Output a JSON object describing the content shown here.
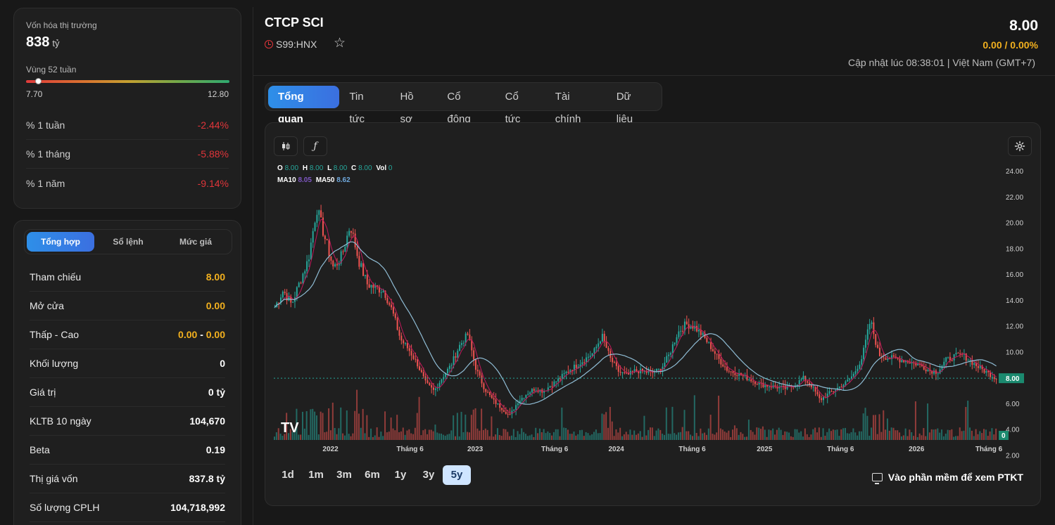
{
  "market": {
    "cap_label": "Vốn hóa thị trường",
    "cap_value": "838",
    "cap_unit": "tỷ",
    "w52_label": "Vùng 52 tuần",
    "w52_low": "7.70",
    "w52_high": "12.80",
    "w52_current_fraction": 0.06,
    "perf": [
      {
        "label": "% 1 tuần",
        "value": "-2.44%"
      },
      {
        "label": "% 1 tháng",
        "value": "-5.88%"
      },
      {
        "label": "% 1 năm",
        "value": "-9.14%"
      }
    ]
  },
  "summary": {
    "tabs": [
      "Tổng hợp",
      "Sổ lệnh",
      "Mức giá"
    ],
    "rows": [
      {
        "label": "Tham chiếu",
        "value": "8.00"
      },
      {
        "label": "Mở cửa",
        "value": "0.00"
      },
      {
        "label": "Thấp - Cao",
        "low": "0.00",
        "sep": "-",
        "high": "0.00"
      },
      {
        "label": "Khối lượng",
        "value": "0"
      },
      {
        "label": "Giá trị",
        "value": "0 tỷ"
      },
      {
        "label": "KLTB 10 ngày",
        "value": "104,670"
      },
      {
        "label": "Beta",
        "value": "0.19"
      },
      {
        "label": "Thị giá vốn",
        "value": "837.8 tỷ"
      },
      {
        "label": "Số lượng CPLH",
        "value": "104,718,992"
      }
    ]
  },
  "header": {
    "company": "CTCP SCI",
    "ticker": "S99:HNX",
    "price": "8.00",
    "change": "0.00 / 0.00%",
    "updated": "Cập nhật lúc 08:38:01 | Việt Nam (GMT+7)"
  },
  "nav": {
    "tabs": [
      "Tổng quan",
      "Tin tức",
      "Hồ sơ",
      "Cổ đông",
      "Cổ tức",
      "Tài chính",
      "Dữ liệu"
    ]
  },
  "chart": {
    "ohlc": {
      "o_label": "O",
      "o": "8.00",
      "h_label": "H",
      "h": "8.00",
      "l_label": "L",
      "l": "8.00",
      "c_label": "C",
      "c": "8.00",
      "vol_label": "Vol",
      "vol": "0"
    },
    "ma": {
      "ma10_label": "MA10",
      "ma10": "8.05",
      "ma50_label": "MA50",
      "ma50": "8.62"
    },
    "last_price_label": "8.00",
    "last_vol_label": "0",
    "periods": [
      "1d",
      "1m",
      "3m",
      "6m",
      "1y",
      "3y",
      "5y"
    ],
    "active_period": "5y",
    "software_link": "Vào phần mềm để xem PTKT",
    "logo_text": "TV",
    "colors": {
      "up": "#26a69a",
      "down": "#ef5350",
      "ma10": "#c2185b",
      "ma50": "#8fbcd4",
      "accent": "#2e8fe8"
    }
  },
  "chart_data": {
    "type": "line",
    "title": "",
    "xlabel": "",
    "ylabel": "",
    "ylim": [
      3,
      24.5
    ],
    "yticks": [
      "24.00",
      "22.00",
      "20.00",
      "18.00",
      "16.00",
      "14.00",
      "12.00",
      "10.00",
      "8.00",
      "6.00",
      "4.00",
      "2.00"
    ],
    "xticks": [
      "2022",
      "Tháng 6",
      "2023",
      "Tháng 6",
      "2024",
      "Tháng 6",
      "2025",
      "Tháng 6",
      "2026",
      "Tháng 6"
    ],
    "x_index_ticks": [
      0.09,
      0.2,
      0.29,
      0.4,
      0.485,
      0.59,
      0.69,
      0.795,
      0.9,
      1.0
    ],
    "series": [
      {
        "values": [
          13.5,
          14.8,
          13.7,
          15.5,
          17.2,
          21.2,
          18.8,
          16.5,
          17.5,
          19.9,
          17.1,
          15.3,
          15.0,
          14.8,
          13.2,
          11.0,
          10.2,
          9.1,
          7.6,
          7.0,
          8.1,
          9.0,
          10.5,
          11.4,
          8.7,
          7.2,
          6.3,
          5.7,
          5.1,
          6.2,
          6.8,
          7.2,
          7.0,
          7.5,
          8.0,
          8.6,
          9.0,
          9.5,
          10.0,
          11.3,
          9.5,
          8.5,
          8.2,
          8.6,
          8.5,
          8.4,
          8.7,
          9.8,
          11.5,
          12.2,
          12.0,
          11.3,
          10.4,
          9.4,
          8.6,
          8.4,
          8.1,
          7.8,
          7.5,
          7.4,
          7.3,
          7.2,
          7.5,
          8.0,
          7.4,
          6.3,
          6.8,
          7.2,
          7.6,
          8.3,
          9.6,
          12.5,
          9.8,
          9.6,
          9.5,
          9.4,
          9.2,
          9.0,
          8.6,
          8.5,
          9.4,
          9.7,
          9.8,
          9.3,
          8.8,
          8.4,
          8.0
        ],
        "name": ""
      }
    ]
  }
}
